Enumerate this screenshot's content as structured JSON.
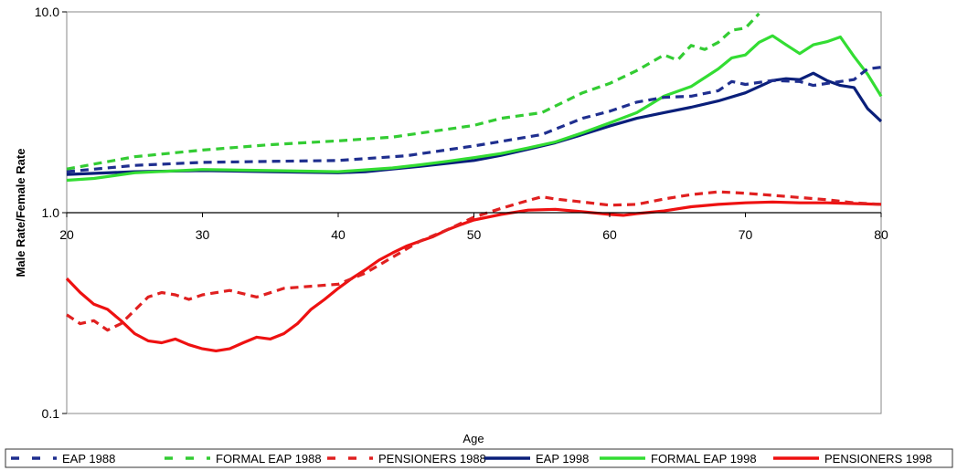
{
  "chart_data": {
    "type": "line",
    "xlabel": "Age",
    "ylabel": "Male Rate/Female Rate",
    "xlim": [
      20,
      80
    ],
    "ylim": [
      0.1,
      10
    ],
    "yscale": "log",
    "x_ticks": [
      "20",
      "30",
      "40",
      "50",
      "60",
      "70",
      "80"
    ],
    "y_ticks": [
      "0.1",
      "1.0",
      "10.0"
    ],
    "grid": false,
    "legend_position": "bottom",
    "series": [
      {
        "name": "EAP 1988",
        "color": "#1f2f8f",
        "style": "dashed",
        "x": [
          20,
          25,
          30,
          35,
          40,
          45,
          50,
          55,
          58,
          60,
          62,
          64,
          66,
          68,
          69,
          70,
          72,
          74,
          75,
          76,
          78,
          79,
          80
        ],
        "y": [
          1.6,
          1.72,
          1.78,
          1.8,
          1.82,
          1.92,
          2.15,
          2.45,
          2.95,
          3.2,
          3.55,
          3.75,
          3.8,
          4.05,
          4.5,
          4.35,
          4.55,
          4.5,
          4.3,
          4.4,
          4.6,
          5.2,
          5.3
        ]
      },
      {
        "name": "FORMAL EAP 1988",
        "color": "#33cc33",
        "style": "dashed",
        "x": [
          20,
          25,
          30,
          35,
          40,
          44,
          50,
          52,
          55,
          58,
          60,
          62,
          64,
          65,
          66,
          67,
          68,
          69,
          70,
          71
        ],
        "y": [
          1.65,
          1.9,
          2.05,
          2.18,
          2.28,
          2.38,
          2.72,
          2.95,
          3.15,
          3.95,
          4.4,
          5.1,
          6.1,
          5.75,
          6.8,
          6.5,
          7.05,
          8.1,
          8.3,
          9.8
        ]
      },
      {
        "name": "PENSIONERS 1988",
        "color": "#e02020",
        "style": "dashed",
        "x": [
          20,
          21,
          22,
          23,
          24,
          26,
          27,
          28,
          29,
          30,
          32,
          34,
          36,
          38,
          40,
          42,
          44,
          46,
          48,
          50,
          52,
          54,
          55,
          56,
          58,
          60,
          62,
          64,
          66,
          68,
          69,
          70,
          72,
          74,
          76,
          78,
          80
        ],
        "y": [
          0.31,
          0.28,
          0.29,
          0.26,
          0.28,
          0.38,
          0.4,
          0.39,
          0.37,
          0.39,
          0.41,
          0.38,
          0.42,
          0.43,
          0.44,
          0.5,
          0.6,
          0.72,
          0.82,
          0.95,
          1.05,
          1.15,
          1.2,
          1.17,
          1.13,
          1.09,
          1.1,
          1.17,
          1.23,
          1.27,
          1.26,
          1.25,
          1.22,
          1.19,
          1.16,
          1.12,
          1.1
        ]
      },
      {
        "name": "EAP 1998",
        "color": "#0a1f7a",
        "style": "solid",
        "x": [
          20,
          25,
          30,
          35,
          40,
          42,
          44,
          46,
          48,
          50,
          52,
          54,
          56,
          58,
          60,
          62,
          64,
          66,
          68,
          70,
          72,
          73,
          74,
          75,
          76,
          77,
          78,
          79,
          80
        ],
        "y": [
          1.55,
          1.6,
          1.62,
          1.6,
          1.58,
          1.6,
          1.65,
          1.7,
          1.76,
          1.82,
          1.93,
          2.07,
          2.23,
          2.45,
          2.7,
          2.95,
          3.15,
          3.35,
          3.6,
          3.95,
          4.55,
          4.65,
          4.6,
          4.95,
          4.55,
          4.3,
          4.2,
          3.3,
          2.85
        ]
      },
      {
        "name": "FORMAL EAP 1998",
        "color": "#33dd33",
        "style": "solid",
        "x": [
          20,
          22,
          25,
          30,
          35,
          40,
          44,
          46,
          48,
          50,
          52,
          54,
          56,
          58,
          60,
          62,
          64,
          66,
          68,
          69,
          70,
          71,
          72,
          73,
          74,
          75,
          76,
          77,
          78,
          79,
          80
        ],
        "y": [
          1.45,
          1.48,
          1.58,
          1.64,
          1.62,
          1.6,
          1.67,
          1.73,
          1.8,
          1.88,
          1.97,
          2.1,
          2.25,
          2.5,
          2.8,
          3.15,
          3.8,
          4.25,
          5.2,
          5.9,
          6.1,
          7.05,
          7.6,
          6.85,
          6.2,
          6.85,
          7.1,
          7.5,
          6.0,
          4.9,
          3.8
        ]
      },
      {
        "name": "PENSIONERS 1998",
        "color": "#ee1111",
        "style": "solid",
        "x": [
          20,
          21,
          22,
          23,
          24,
          25,
          26,
          27,
          28,
          29,
          30,
          31,
          32,
          33,
          34,
          35,
          36,
          37,
          38,
          39,
          40,
          41,
          42,
          43,
          44,
          45,
          46,
          47,
          48,
          49,
          50,
          52,
          54,
          56,
          58,
          60,
          61,
          62,
          64,
          66,
          68,
          70,
          72,
          74,
          76,
          78,
          80
        ],
        "y": [
          0.47,
          0.4,
          0.35,
          0.33,
          0.29,
          0.25,
          0.23,
          0.225,
          0.235,
          0.22,
          0.21,
          0.205,
          0.21,
          0.225,
          0.24,
          0.235,
          0.25,
          0.28,
          0.33,
          0.37,
          0.42,
          0.47,
          0.52,
          0.58,
          0.63,
          0.68,
          0.72,
          0.76,
          0.82,
          0.87,
          0.92,
          0.98,
          1.03,
          1.04,
          1.01,
          0.98,
          0.97,
          0.99,
          1.02,
          1.07,
          1.1,
          1.12,
          1.13,
          1.12,
          1.12,
          1.11,
          1.1
        ]
      }
    ]
  }
}
